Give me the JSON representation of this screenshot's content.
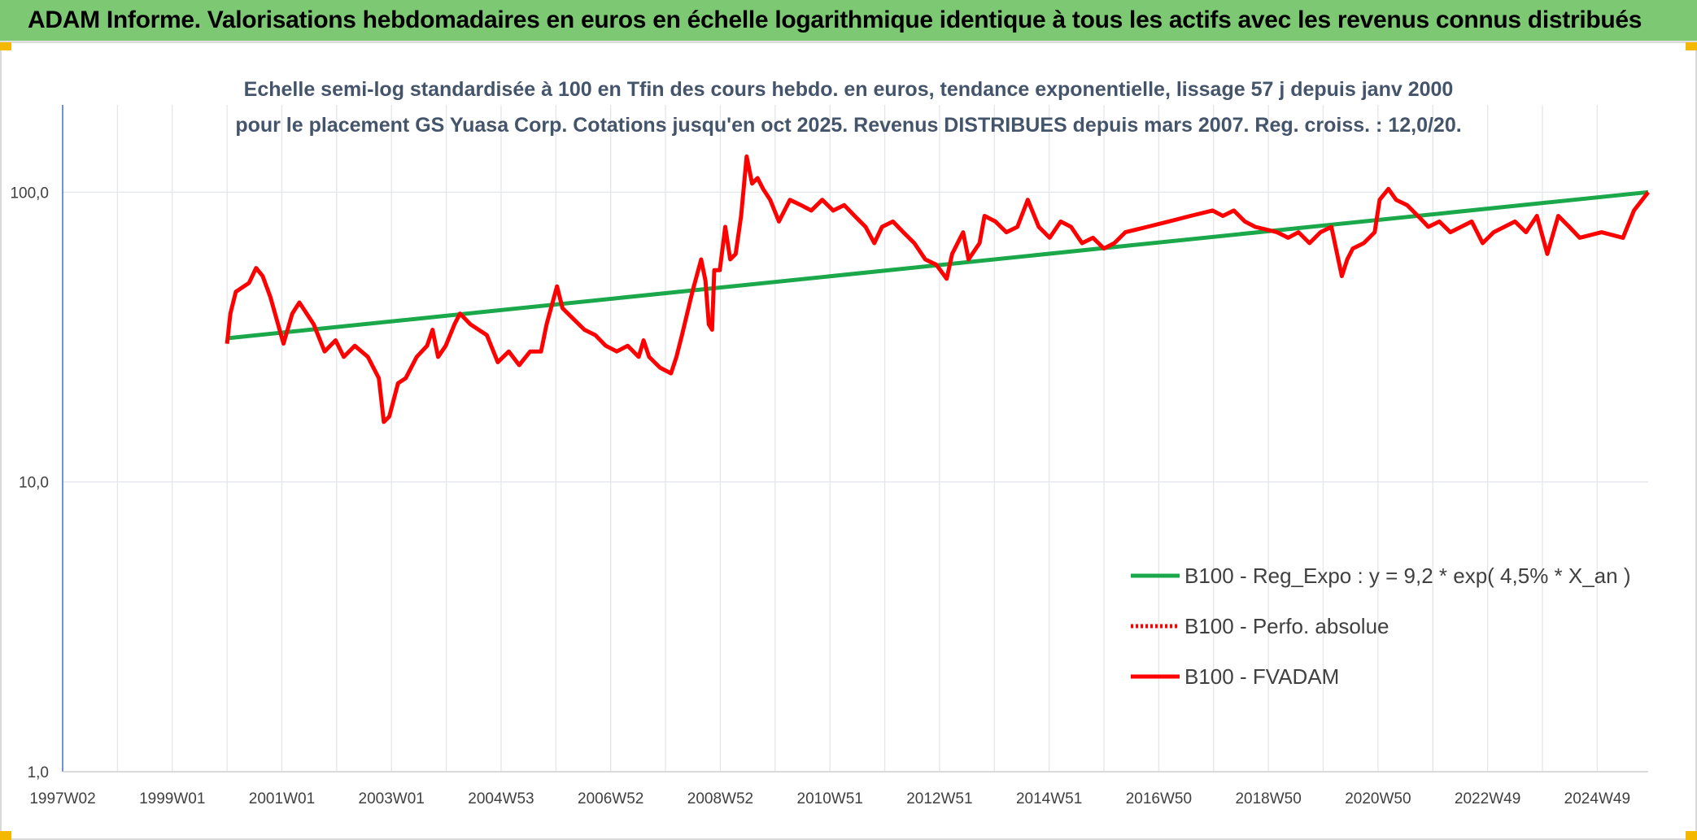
{
  "header": {
    "title": "ADAM Informe. Valorisations hebdomadaires en euros en échelle logarithmique identique à tous les actifs avec les revenus connus distribués"
  },
  "chart_data": {
    "type": "line",
    "subtitle": "Echelle semi-log standardisée à 100 en Tfin des cours hebdo. en euros, tendance exponentielle, lissage 57 j depuis janv 2000 pour le placement GS Yuasa Corp. Cotations jusqu'en oct 2025. Revenus DISTRIBUES depuis mars 2007. Reg. croiss. : 12,0/20.",
    "log_scale": true,
    "grid": true,
    "legend": "lower right",
    "xlim": [
      1997,
      2025.93
    ],
    "xticks": [
      {
        "value": 1997,
        "label": "1997W02"
      },
      {
        "value": 1999,
        "label": "1999W01"
      },
      {
        "value": 2001,
        "label": "2001W01"
      },
      {
        "value": 2003,
        "label": "2003W01"
      },
      {
        "value": 2005,
        "label": "2004W53"
      },
      {
        "value": 2007,
        "label": "2006W52"
      },
      {
        "value": 2009,
        "label": "2008W52"
      },
      {
        "value": 2011,
        "label": "2010W51"
      },
      {
        "value": 2013,
        "label": "2012W51"
      },
      {
        "value": 2015,
        "label": "2014W51"
      },
      {
        "value": 2017,
        "label": "2016W50"
      },
      {
        "value": 2019,
        "label": "2018W50"
      },
      {
        "value": 2021,
        "label": "2020W50"
      },
      {
        "value": 2023,
        "label": "2022W49"
      },
      {
        "value": 2025,
        "label": "2024W49"
      }
    ],
    "ylim": [
      1,
      200
    ],
    "yticks": [
      {
        "value": 1,
        "label": "1,0"
      },
      {
        "value": 10,
        "label": "10,0"
      },
      {
        "value": 100,
        "label": "100,0"
      }
    ],
    "series": [
      {
        "name": "B100 - Reg_Expo : y = 9,2 * exp( 4,5% *  X_an )",
        "color": "#1aa84a",
        "style": "solid",
        "x": [
          2000.0,
          2025.93
        ],
        "values": [
          31.3,
          100
        ]
      },
      {
        "name": "B100 - Perfo. absolue",
        "color": "#ff0000",
        "style": "dotted",
        "x": [
          2000.0,
          2000.06,
          2000.16,
          2000.4,
          2000.53,
          2000.65,
          2000.79,
          2000.93,
          2001.03,
          2001.19,
          2001.32,
          2001.58,
          2001.78,
          2001.98,
          2002.13,
          2002.33,
          2002.57,
          2002.77,
          2002.86,
          2002.96,
          2003.12,
          2003.26,
          2003.46,
          2003.65,
          2003.75,
          2003.85,
          2003.99,
          2004.15,
          2004.25,
          2004.44,
          2004.74,
          2004.94,
          2005.14,
          2005.33,
          2005.53,
          2005.73,
          2005.83,
          2006.02,
          2006.12,
          2006.32,
          2006.52,
          2006.72,
          2006.91,
          2007.11,
          2007.31,
          2007.51,
          2007.6,
          2007.7,
          2007.9,
          2008.1,
          2008.2,
          2008.3,
          2008.49,
          2008.65,
          2008.73,
          2008.79,
          2008.85,
          2008.89,
          2008.99,
          2009.09,
          2009.18,
          2009.28,
          2009.38,
          2009.48,
          2009.58,
          2009.68,
          2009.78,
          2009.91,
          2010.07,
          2010.27,
          2010.47,
          2010.66,
          2010.86,
          2011.06,
          2011.26,
          2011.45,
          2011.65,
          2011.81,
          2011.95,
          2012.15,
          2012.34,
          2012.54,
          2012.74,
          2012.94,
          2013.13,
          2013.23,
          2013.43,
          2013.53,
          2013.73,
          2013.82,
          2014.02,
          2014.22,
          2014.42,
          2014.61,
          2014.81,
          2015.01,
          2015.21,
          2015.4,
          2015.6,
          2015.8,
          2016.0,
          2016.19,
          2016.39,
          2016.79,
          2017.18,
          2017.58,
          2017.98,
          2018.17,
          2018.37,
          2018.57,
          2018.76,
          2019.16,
          2019.36,
          2019.55,
          2019.75,
          2019.95,
          2020.15,
          2020.34,
          2020.44,
          2020.54,
          2020.74,
          2020.94,
          2021.03,
          2021.19,
          2021.33,
          2021.53,
          2021.73,
          2021.92,
          2022.12,
          2022.32,
          2022.71,
          2022.91,
          2023.11,
          2023.5,
          2023.7,
          2023.9,
          2024.09,
          2024.29,
          2024.49,
          2024.68,
          2025.08,
          2025.47,
          2025.67,
          2025.93
        ],
        "values": [
          30.0,
          38.1,
          45.3,
          48.6,
          54.7,
          51.3,
          43.5,
          35.0,
          30.0,
          38.1,
          41.6,
          35.0,
          28.2,
          30.8,
          27.0,
          29.5,
          27.0,
          22.8,
          16.1,
          16.8,
          21.9,
          22.8,
          27.0,
          29.5,
          33.5,
          27.0,
          29.5,
          35.0,
          38.1,
          35.0,
          32.1,
          25.9,
          28.2,
          25.3,
          28.2,
          28.2,
          35.0,
          47.3,
          39.8,
          36.5,
          33.5,
          32.1,
          29.5,
          28.2,
          29.5,
          27.0,
          30.8,
          27.0,
          24.8,
          23.7,
          27.0,
          32.1,
          45.3,
          58.6,
          49.4,
          35.0,
          33.5,
          53.8,
          53.8,
          75.9,
          58.6,
          61.2,
          82.8,
          132.8,
          107.1,
          111.8,
          102.6,
          94.1,
          79.2,
          94.1,
          90.2,
          86.4,
          94.1,
          86.4,
          90.2,
          82.8,
          75.9,
          66.7,
          75.9,
          79.2,
          72.7,
          66.7,
          58.6,
          56.2,
          50.2,
          61.2,
          72.7,
          58.6,
          66.7,
          82.8,
          79.2,
          72.7,
          75.9,
          94.1,
          75.9,
          69.6,
          79.2,
          75.9,
          66.7,
          69.6,
          63.9,
          66.7,
          72.7,
          75.9,
          79.2,
          82.8,
          86.4,
          82.8,
          86.4,
          79.2,
          75.9,
          72.7,
          69.6,
          72.7,
          66.7,
          72.7,
          75.9,
          51.3,
          58.6,
          63.9,
          66.7,
          72.7,
          94.1,
          102.6,
          94.1,
          90.2,
          82.8,
          75.9,
          79.2,
          72.7,
          79.2,
          66.7,
          72.7,
          79.2,
          72.7,
          82.8,
          61.2,
          82.8,
          75.9,
          69.6,
          72.7,
          69.6,
          86.4,
          100
        ]
      },
      {
        "name": "B100 - FVADAM",
        "color": "#ff0000",
        "style": "solid",
        "x": [
          2000.0,
          2000.06,
          2000.16,
          2000.4,
          2000.53,
          2000.65,
          2000.79,
          2000.93,
          2001.03,
          2001.19,
          2001.32,
          2001.58,
          2001.78,
          2001.98,
          2002.13,
          2002.33,
          2002.57,
          2002.77,
          2002.86,
          2002.96,
          2003.12,
          2003.26,
          2003.46,
          2003.65,
          2003.75,
          2003.85,
          2003.99,
          2004.15,
          2004.25,
          2004.44,
          2004.74,
          2004.94,
          2005.14,
          2005.33,
          2005.53,
          2005.73,
          2005.83,
          2006.02,
          2006.12,
          2006.32,
          2006.52,
          2006.72,
          2006.91,
          2007.11,
          2007.31,
          2007.51,
          2007.6,
          2007.7,
          2007.9,
          2008.1,
          2008.2,
          2008.3,
          2008.49,
          2008.65,
          2008.73,
          2008.79,
          2008.85,
          2008.89,
          2008.99,
          2009.09,
          2009.18,
          2009.28,
          2009.38,
          2009.48,
          2009.58,
          2009.68,
          2009.78,
          2009.91,
          2010.07,
          2010.27,
          2010.47,
          2010.66,
          2010.86,
          2011.06,
          2011.26,
          2011.45,
          2011.65,
          2011.81,
          2011.95,
          2012.15,
          2012.34,
          2012.54,
          2012.74,
          2012.94,
          2013.13,
          2013.23,
          2013.43,
          2013.53,
          2013.73,
          2013.82,
          2014.02,
          2014.22,
          2014.42,
          2014.61,
          2014.81,
          2015.01,
          2015.21,
          2015.4,
          2015.6,
          2015.8,
          2016.0,
          2016.19,
          2016.39,
          2016.79,
          2017.18,
          2017.58,
          2017.98,
          2018.17,
          2018.37,
          2018.57,
          2018.76,
          2019.16,
          2019.36,
          2019.55,
          2019.75,
          2019.95,
          2020.15,
          2020.34,
          2020.44,
          2020.54,
          2020.74,
          2020.94,
          2021.03,
          2021.19,
          2021.33,
          2021.53,
          2021.73,
          2021.92,
          2022.12,
          2022.32,
          2022.71,
          2022.91,
          2023.11,
          2023.5,
          2023.7,
          2023.9,
          2024.09,
          2024.29,
          2024.49,
          2024.68,
          2025.08,
          2025.47,
          2025.67,
          2025.93
        ],
        "values": [
          30.0,
          38.1,
          45.3,
          48.6,
          54.7,
          51.3,
          43.5,
          35.0,
          30.0,
          38.1,
          41.6,
          35.0,
          28.2,
          30.8,
          27.0,
          29.5,
          27.0,
          22.8,
          16.1,
          16.8,
          21.9,
          22.8,
          27.0,
          29.5,
          33.5,
          27.0,
          29.5,
          35.0,
          38.1,
          35.0,
          32.1,
          25.9,
          28.2,
          25.3,
          28.2,
          28.2,
          35.0,
          47.3,
          39.8,
          36.5,
          33.5,
          32.1,
          29.5,
          28.2,
          29.5,
          27.0,
          30.8,
          27.0,
          24.8,
          23.7,
          27.0,
          32.1,
          45.3,
          58.6,
          49.4,
          35.0,
          33.5,
          53.8,
          53.8,
          75.9,
          58.6,
          61.2,
          82.8,
          132.8,
          107.1,
          111.8,
          102.6,
          94.1,
          79.2,
          94.1,
          90.2,
          86.4,
          94.1,
          86.4,
          90.2,
          82.8,
          75.9,
          66.7,
          75.9,
          79.2,
          72.7,
          66.7,
          58.6,
          56.2,
          50.2,
          61.2,
          72.7,
          58.6,
          66.7,
          82.8,
          79.2,
          72.7,
          75.9,
          94.1,
          75.9,
          69.6,
          79.2,
          75.9,
          66.7,
          69.6,
          63.9,
          66.7,
          72.7,
          75.9,
          79.2,
          82.8,
          86.4,
          82.8,
          86.4,
          79.2,
          75.9,
          72.7,
          69.6,
          72.7,
          66.7,
          72.7,
          75.9,
          51.3,
          58.6,
          63.9,
          66.7,
          72.7,
          94.1,
          102.6,
          94.1,
          90.2,
          82.8,
          75.9,
          79.2,
          72.7,
          79.2,
          66.7,
          72.7,
          79.2,
          72.7,
          82.8,
          61.2,
          82.8,
          75.9,
          69.6,
          72.7,
          69.6,
          86.4,
          100
        ]
      }
    ]
  }
}
